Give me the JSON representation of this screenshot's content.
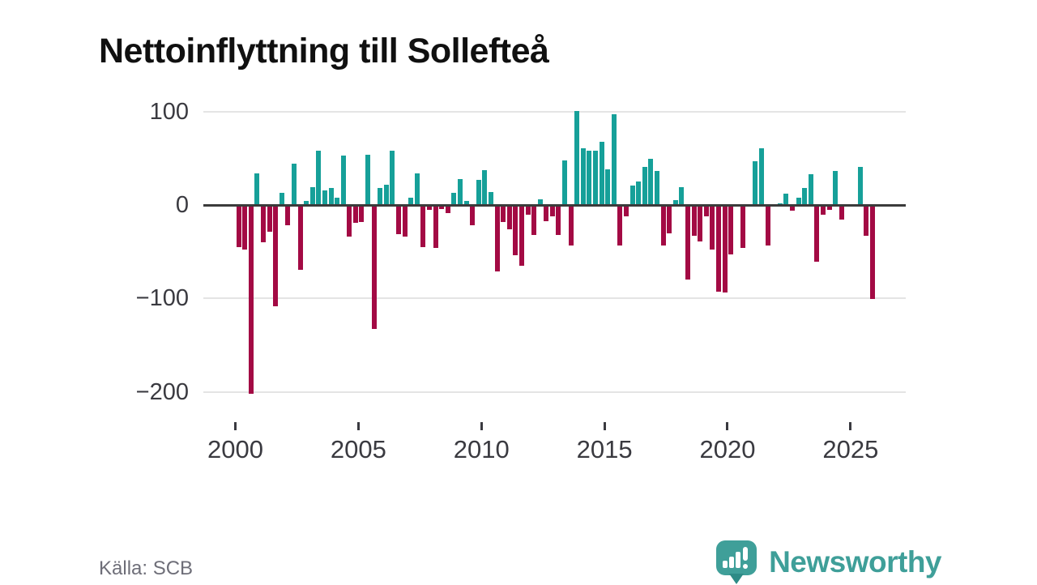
{
  "title": "Nettoinflyttning till Sollefteå",
  "source": "Källa: SCB",
  "branding": {
    "name": "Newsworthy",
    "icon": "newsworthy-speech-bubble-chart-icon"
  },
  "colors": {
    "positive_bar": "#16a099",
    "negative_bar": "#a30a44",
    "zero_line": "#3b3b3b",
    "gridline": "#e4e4e4",
    "axis_text": "#3a3a40",
    "source_text": "#6e6e78",
    "brand_teal": "#3f9f99",
    "brand_tail_teal": "#2e8b86"
  },
  "chart_data": {
    "type": "bar",
    "title": "Nettoinflyttning till Sollefteå",
    "xlabel": "",
    "ylabel": "",
    "frequency": "quarterly",
    "start_year": 2000,
    "x_tick_years": [
      2000,
      2005,
      2010,
      2015,
      2020,
      2025
    ],
    "y_ticks": [
      100,
      0,
      -100,
      -200
    ],
    "y_tick_labels": [
      "100",
      "0",
      "−100",
      "−200"
    ],
    "ylim": [
      -215,
      115
    ],
    "grid": "horizontal",
    "legend": "none",
    "values": [
      -45,
      -48,
      -202,
      34,
      -40,
      -29,
      -108,
      13,
      -22,
      44,
      -69,
      4,
      19,
      58,
      16,
      18,
      8,
      53,
      -34,
      -19,
      -18,
      54,
      -133,
      18,
      22,
      58,
      -31,
      -34,
      8,
      34,
      -45,
      -5,
      -46,
      -4,
      -9,
      13,
      28,
      4,
      -22,
      27,
      37,
      14,
      -71,
      -18,
      -26,
      -54,
      -65,
      -10,
      -32,
      6,
      -17,
      -12,
      -32,
      48,
      -43,
      101,
      61,
      58,
      58,
      68,
      38,
      97,
      -43,
      -12,
      21,
      25,
      41,
      49,
      36,
      -43,
      -30,
      5,
      19,
      -80,
      -33,
      -39,
      -12,
      -48,
      -93,
      -94,
      -53,
      0,
      -46,
      0,
      47,
      61,
      -43,
      0,
      2,
      12,
      -6,
      8,
      18,
      33,
      -61,
      -10,
      -5,
      36,
      -16,
      0,
      0,
      41,
      -33,
      -101
    ]
  }
}
